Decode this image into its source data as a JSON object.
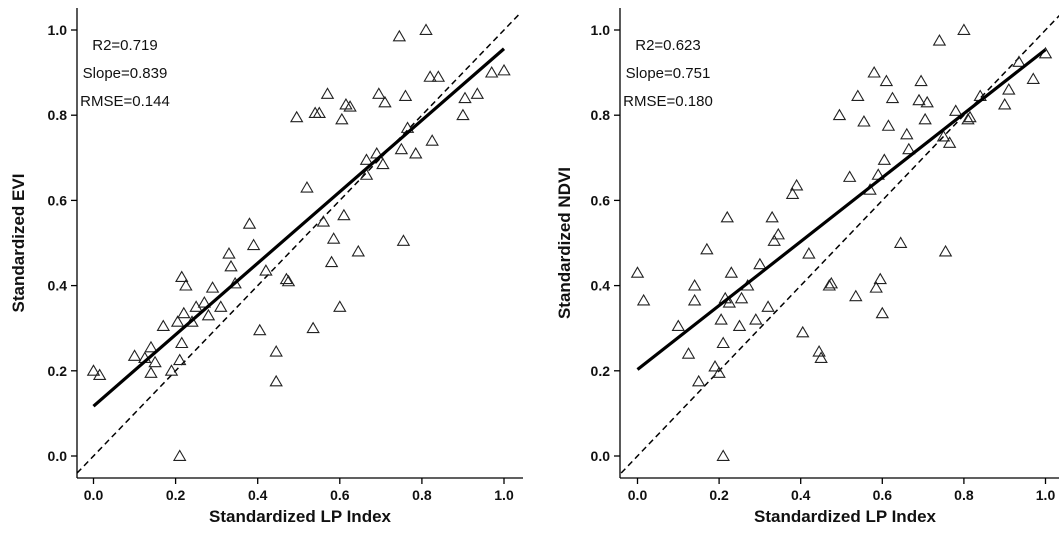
{
  "chart_data": [
    {
      "type": "scatter",
      "xlabel": "Standardized LP Index",
      "ylabel": "Standardized EVI",
      "xlim": [
        -0.04,
        1.04
      ],
      "ylim": [
        -0.04,
        1.05
      ],
      "xticks": [
        0.0,
        0.2,
        0.4,
        0.6,
        0.8,
        1.0
      ],
      "xtick_labels": [
        "0.0",
        "0.2",
        "0.4",
        "0.6",
        "0.8",
        "1.0"
      ],
      "yticks": [
        0.0,
        0.2,
        0.4,
        0.6,
        0.8,
        1.0
      ],
      "ytick_labels": [
        "0.0",
        "0.2",
        "0.4",
        "0.6",
        "0.8",
        "1.0"
      ],
      "stats": [
        "R2=0.719",
        "Slope=0.839",
        "RMSE=0.144"
      ],
      "marker": "open-triangle",
      "fit_line": {
        "x": [
          0.0,
          1.0
        ],
        "y": [
          0.117,
          0.956
        ]
      },
      "reference_line": {
        "x": [
          -0.04,
          1.04
        ],
        "y": [
          -0.04,
          1.04
        ],
        "style": "dashed"
      },
      "points": [
        [
          0.0,
          0.2
        ],
        [
          0.015,
          0.19
        ],
        [
          0.1,
          0.235
        ],
        [
          0.125,
          0.23
        ],
        [
          0.14,
          0.255
        ],
        [
          0.14,
          0.195
        ],
        [
          0.15,
          0.22
        ],
        [
          0.17,
          0.305
        ],
        [
          0.19,
          0.2
        ],
        [
          0.205,
          0.315
        ],
        [
          0.21,
          0.225
        ],
        [
          0.215,
          0.265
        ],
        [
          0.21,
          0.0
        ],
        [
          0.215,
          0.42
        ],
        [
          0.22,
          0.335
        ],
        [
          0.225,
          0.4
        ],
        [
          0.24,
          0.315
        ],
        [
          0.25,
          0.35
        ],
        [
          0.27,
          0.36
        ],
        [
          0.28,
          0.33
        ],
        [
          0.29,
          0.395
        ],
        [
          0.31,
          0.35
        ],
        [
          0.33,
          0.475
        ],
        [
          0.335,
          0.445
        ],
        [
          0.345,
          0.405
        ],
        [
          0.38,
          0.545
        ],
        [
          0.39,
          0.495
        ],
        [
          0.405,
          0.295
        ],
        [
          0.42,
          0.435
        ],
        [
          0.445,
          0.245
        ],
        [
          0.445,
          0.175
        ],
        [
          0.47,
          0.415
        ],
        [
          0.475,
          0.41
        ],
        [
          0.495,
          0.795
        ],
        [
          0.52,
          0.63
        ],
        [
          0.535,
          0.3
        ],
        [
          0.54,
          0.805
        ],
        [
          0.55,
          0.805
        ],
        [
          0.56,
          0.55
        ],
        [
          0.57,
          0.85
        ],
        [
          0.58,
          0.455
        ],
        [
          0.585,
          0.51
        ],
        [
          0.6,
          0.35
        ],
        [
          0.605,
          0.79
        ],
        [
          0.61,
          0.565
        ],
        [
          0.615,
          0.825
        ],
        [
          0.625,
          0.82
        ],
        [
          0.645,
          0.48
        ],
        [
          0.665,
          0.66
        ],
        [
          0.665,
          0.695
        ],
        [
          0.69,
          0.71
        ],
        [
          0.695,
          0.85
        ],
        [
          0.705,
          0.685
        ],
        [
          0.71,
          0.83
        ],
        [
          0.745,
          0.985
        ],
        [
          0.75,
          0.72
        ],
        [
          0.755,
          0.505
        ],
        [
          0.76,
          0.845
        ],
        [
          0.765,
          0.77
        ],
        [
          0.785,
          0.71
        ],
        [
          0.81,
          1.0
        ],
        [
          0.82,
          0.89
        ],
        [
          0.825,
          0.74
        ],
        [
          0.84,
          0.89
        ],
        [
          0.9,
          0.8
        ],
        [
          0.905,
          0.84
        ],
        [
          0.935,
          0.85
        ],
        [
          0.97,
          0.9
        ],
        [
          1.0,
          0.905
        ]
      ]
    },
    {
      "type": "scatter",
      "xlabel": "Standardized LP Index",
      "ylabel": "Standardized NDVI",
      "xlim": [
        -0.04,
        1.04
      ],
      "ylim": [
        -0.04,
        1.05
      ],
      "xticks": [
        0.0,
        0.2,
        0.4,
        0.6,
        0.8,
        1.0
      ],
      "xtick_labels": [
        "0.0",
        "0.2",
        "0.4",
        "0.6",
        "0.8",
        "1.0"
      ],
      "yticks": [
        0.0,
        0.2,
        0.4,
        0.6,
        0.8,
        1.0
      ],
      "ytick_labels": [
        "0.0",
        "0.2",
        "0.4",
        "0.6",
        "0.8",
        "1.0"
      ],
      "stats": [
        "R2=0.623",
        "Slope=0.751",
        "RMSE=0.180"
      ],
      "marker": "open-triangle",
      "fit_line": {
        "x": [
          0.0,
          1.0
        ],
        "y": [
          0.203,
          0.954
        ]
      },
      "reference_line": {
        "x": [
          -0.04,
          1.04
        ],
        "y": [
          -0.04,
          1.04
        ],
        "style": "dashed"
      },
      "points": [
        [
          0.0,
          0.43
        ],
        [
          0.015,
          0.365
        ],
        [
          0.1,
          0.305
        ],
        [
          0.125,
          0.24
        ],
        [
          0.14,
          0.4
        ],
        [
          0.14,
          0.365
        ],
        [
          0.15,
          0.175
        ],
        [
          0.17,
          0.485
        ],
        [
          0.19,
          0.21
        ],
        [
          0.2,
          0.195
        ],
        [
          0.205,
          0.32
        ],
        [
          0.21,
          0.265
        ],
        [
          0.21,
          0.0
        ],
        [
          0.215,
          0.37
        ],
        [
          0.22,
          0.56
        ],
        [
          0.225,
          0.36
        ],
        [
          0.23,
          0.43
        ],
        [
          0.25,
          0.305
        ],
        [
          0.255,
          0.37
        ],
        [
          0.27,
          0.4
        ],
        [
          0.29,
          0.32
        ],
        [
          0.3,
          0.45
        ],
        [
          0.32,
          0.35
        ],
        [
          0.33,
          0.56
        ],
        [
          0.335,
          0.505
        ],
        [
          0.345,
          0.52
        ],
        [
          0.38,
          0.615
        ],
        [
          0.39,
          0.635
        ],
        [
          0.405,
          0.29
        ],
        [
          0.42,
          0.475
        ],
        [
          0.445,
          0.245
        ],
        [
          0.45,
          0.23
        ],
        [
          0.47,
          0.4
        ],
        [
          0.475,
          0.405
        ],
        [
          0.495,
          0.8
        ],
        [
          0.52,
          0.655
        ],
        [
          0.535,
          0.375
        ],
        [
          0.54,
          0.845
        ],
        [
          0.555,
          0.785
        ],
        [
          0.57,
          0.625
        ],
        [
          0.58,
          0.9
        ],
        [
          0.585,
          0.395
        ],
        [
          0.59,
          0.66
        ],
        [
          0.595,
          0.415
        ],
        [
          0.6,
          0.335
        ],
        [
          0.605,
          0.695
        ],
        [
          0.61,
          0.88
        ],
        [
          0.615,
          0.775
        ],
        [
          0.625,
          0.84
        ],
        [
          0.645,
          0.5
        ],
        [
          0.66,
          0.755
        ],
        [
          0.665,
          0.72
        ],
        [
          0.69,
          0.835
        ],
        [
          0.695,
          0.88
        ],
        [
          0.705,
          0.79
        ],
        [
          0.71,
          0.83
        ],
        [
          0.74,
          0.975
        ],
        [
          0.75,
          0.75
        ],
        [
          0.755,
          0.48
        ],
        [
          0.765,
          0.735
        ],
        [
          0.78,
          0.81
        ],
        [
          0.8,
          1.0
        ],
        [
          0.81,
          0.79
        ],
        [
          0.815,
          0.795
        ],
        [
          0.84,
          0.845
        ],
        [
          0.9,
          0.825
        ],
        [
          0.91,
          0.86
        ],
        [
          0.935,
          0.925
        ],
        [
          0.97,
          0.885
        ],
        [
          1.0,
          0.945
        ]
      ]
    }
  ]
}
